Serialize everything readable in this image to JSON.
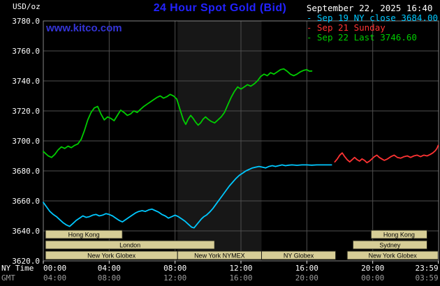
{
  "header": {
    "units": "USD/oz",
    "title": "24 Hour Spot Gold (Bid)",
    "datetime": "September 22, 2025 16:40",
    "watermark": "www.kitco.com"
  },
  "theme": {
    "background": "#000000",
    "title_color": "#2222ff",
    "link_color": "#3434d6",
    "datetime_color": "#ffffff"
  },
  "legend_marker": "-",
  "legend": [
    {
      "label": "Sep 19 NY close 3684.00",
      "color": "#00c8ff"
    },
    {
      "label": "Sep 21 Sunday",
      "color": "#ff3333"
    },
    {
      "label": "Sep 22 Last 3746.60",
      "color": "#00cc00"
    }
  ],
  "footer": {
    "ny_time_label": "NY Time",
    "gmt_label": "GMT"
  },
  "chart_data": {
    "type": "line",
    "title": "24 Hour Spot Gold (Bid)",
    "ylabel": "USD/oz",
    "xlabel": "NY Time / GMT",
    "grid": true,
    "legend_position": "top-right",
    "ylim": [
      3620,
      3780
    ],
    "xlim_hours": [
      0,
      24
    ],
    "y_ticks": [
      3620,
      3640,
      3660,
      3680,
      3700,
      3720,
      3740,
      3760,
      3780
    ],
    "x_tick_hours": [
      0,
      4,
      8,
      12,
      16,
      20,
      23.983
    ],
    "x_ticks_ny": [
      "00:00",
      "04:00",
      "08:00",
      "12:00",
      "16:00",
      "20:00",
      "23:59"
    ],
    "x_ticks_gmt": [
      "04:00",
      "08:00",
      "12:00",
      "16:00",
      "20:00",
      "00:00",
      "03:59"
    ],
    "colors": {
      "grid": "#4f4f4f",
      "border": "#858585",
      "band": "#171717",
      "axis_text": "#ffffff",
      "axis_text_gmt": "#9c9c9c",
      "session_fill": "#d6cd96",
      "session_stroke": "#22221a",
      "tick": "#e6e6e6"
    },
    "nymex_band": {
      "from": 8.15,
      "to": 13.25
    },
    "sessions": [
      {
        "row": 0,
        "from": 0.13,
        "to": 4.8,
        "label": "Hong Kong"
      },
      {
        "row": 0,
        "from": 19.9,
        "to": 23.3,
        "label": "Hong Kong"
      },
      {
        "row": 1,
        "from": 0.13,
        "to": 10.4,
        "label": "London"
      },
      {
        "row": 1,
        "from": 18.8,
        "to": 23.3,
        "label": "Sydney"
      },
      {
        "row": 2,
        "from": 0.13,
        "to": 8.15,
        "label": "New York Globex"
      },
      {
        "row": 2,
        "from": 8.15,
        "to": 13.25,
        "label": "New York NYMEX"
      },
      {
        "row": 2,
        "from": 13.25,
        "to": 17.75,
        "label": "NY Globex"
      },
      {
        "row": 2,
        "from": 18.45,
        "to": 23.97,
        "label": "New York Globex"
      }
    ],
    "series": [
      {
        "id": "sep19",
        "name": "Sep 19 NY close 3684.00",
        "color": "#00c8ff",
        "points": [
          [
            0.0,
            3659
          ],
          [
            0.2,
            3656
          ],
          [
            0.4,
            3653
          ],
          [
            0.6,
            3651
          ],
          [
            0.8,
            3649.5
          ],
          [
            1.0,
            3647.5
          ],
          [
            1.2,
            3645.5
          ],
          [
            1.4,
            3644
          ],
          [
            1.6,
            3643
          ],
          [
            1.8,
            3645
          ],
          [
            2.0,
            3647
          ],
          [
            2.2,
            3648.5
          ],
          [
            2.4,
            3650
          ],
          [
            2.6,
            3649
          ],
          [
            2.8,
            3649.5
          ],
          [
            3.0,
            3650.5
          ],
          [
            3.2,
            3651
          ],
          [
            3.4,
            3650
          ],
          [
            3.6,
            3650.5
          ],
          [
            3.8,
            3651.5
          ],
          [
            4.0,
            3651
          ],
          [
            4.2,
            3650
          ],
          [
            4.4,
            3648.5
          ],
          [
            4.6,
            3647
          ],
          [
            4.8,
            3646
          ],
          [
            5.0,
            3647.5
          ],
          [
            5.2,
            3649
          ],
          [
            5.4,
            3650.5
          ],
          [
            5.6,
            3652
          ],
          [
            5.8,
            3653
          ],
          [
            6.0,
            3653.5
          ],
          [
            6.2,
            3653
          ],
          [
            6.4,
            3654
          ],
          [
            6.6,
            3654.5
          ],
          [
            6.8,
            3653.5
          ],
          [
            7.0,
            3652.5
          ],
          [
            7.2,
            3651
          ],
          [
            7.4,
            3650
          ],
          [
            7.6,
            3648.5
          ],
          [
            7.8,
            3649.5
          ],
          [
            8.0,
            3650.5
          ],
          [
            8.2,
            3649.5
          ],
          [
            8.4,
            3648
          ],
          [
            8.6,
            3646.5
          ],
          [
            8.8,
            3644.5
          ],
          [
            9.0,
            3642.5
          ],
          [
            9.15,
            3642
          ],
          [
            9.3,
            3644
          ],
          [
            9.45,
            3646
          ],
          [
            9.6,
            3648
          ],
          [
            9.75,
            3649.5
          ],
          [
            9.9,
            3650.5
          ],
          [
            10.1,
            3652.5
          ],
          [
            10.3,
            3655
          ],
          [
            10.5,
            3658
          ],
          [
            10.7,
            3661
          ],
          [
            10.9,
            3664
          ],
          [
            11.1,
            3667
          ],
          [
            11.3,
            3670
          ],
          [
            11.5,
            3672.5
          ],
          [
            11.7,
            3675
          ],
          [
            11.9,
            3677
          ],
          [
            12.1,
            3678.5
          ],
          [
            12.3,
            3680
          ],
          [
            12.5,
            3681
          ],
          [
            12.7,
            3682
          ],
          [
            12.9,
            3682.5
          ],
          [
            13.1,
            3683
          ],
          [
            13.3,
            3682.5
          ],
          [
            13.5,
            3682
          ],
          [
            13.7,
            3683
          ],
          [
            13.9,
            3683.5
          ],
          [
            14.1,
            3683
          ],
          [
            14.3,
            3683.5
          ],
          [
            14.5,
            3684
          ],
          [
            14.7,
            3683.5
          ],
          [
            14.9,
            3683.8
          ],
          [
            15.1,
            3684
          ],
          [
            15.4,
            3683.7
          ],
          [
            15.7,
            3684
          ],
          [
            16.0,
            3684
          ],
          [
            16.3,
            3683.8
          ],
          [
            16.6,
            3684
          ],
          [
            16.9,
            3684
          ],
          [
            17.2,
            3684
          ],
          [
            17.5,
            3684
          ]
        ]
      },
      {
        "id": "sep21",
        "name": "Sep 21 Sunday",
        "color": "#ff3333",
        "points": [
          [
            17.7,
            3686
          ],
          [
            17.85,
            3688
          ],
          [
            18.0,
            3690.5
          ],
          [
            18.15,
            3692
          ],
          [
            18.3,
            3689.5
          ],
          [
            18.45,
            3687.5
          ],
          [
            18.6,
            3686
          ],
          [
            18.75,
            3687.5
          ],
          [
            18.9,
            3689
          ],
          [
            19.05,
            3687.5
          ],
          [
            19.2,
            3686.5
          ],
          [
            19.35,
            3688
          ],
          [
            19.5,
            3687
          ],
          [
            19.65,
            3685.5
          ],
          [
            19.8,
            3686.5
          ],
          [
            19.95,
            3688
          ],
          [
            20.1,
            3689.5
          ],
          [
            20.25,
            3690.5
          ],
          [
            20.4,
            3689
          ],
          [
            20.55,
            3688
          ],
          [
            20.7,
            3687
          ],
          [
            20.9,
            3688
          ],
          [
            21.1,
            3689.5
          ],
          [
            21.3,
            3690.5
          ],
          [
            21.5,
            3689
          ],
          [
            21.7,
            3688.5
          ],
          [
            21.9,
            3689.5
          ],
          [
            22.1,
            3690
          ],
          [
            22.3,
            3689
          ],
          [
            22.5,
            3690
          ],
          [
            22.7,
            3690.5
          ],
          [
            22.9,
            3689.5
          ],
          [
            23.1,
            3690.5
          ],
          [
            23.3,
            3690
          ],
          [
            23.5,
            3691
          ],
          [
            23.65,
            3692
          ],
          [
            23.8,
            3693.5
          ],
          [
            23.9,
            3695
          ],
          [
            23.98,
            3697
          ]
        ]
      },
      {
        "id": "sep22",
        "name": "Sep 22 Last 3746.60",
        "color": "#00cc00",
        "points": [
          [
            0.0,
            3693
          ],
          [
            0.15,
            3691.5
          ],
          [
            0.3,
            3690
          ],
          [
            0.5,
            3689
          ],
          [
            0.7,
            3691
          ],
          [
            0.9,
            3694
          ],
          [
            1.1,
            3696
          ],
          [
            1.3,
            3695
          ],
          [
            1.5,
            3696.5
          ],
          [
            1.7,
            3695.5
          ],
          [
            1.9,
            3697
          ],
          [
            2.1,
            3698
          ],
          [
            2.3,
            3701
          ],
          [
            2.5,
            3707
          ],
          [
            2.7,
            3714
          ],
          [
            2.9,
            3719
          ],
          [
            3.1,
            3722
          ],
          [
            3.3,
            3723
          ],
          [
            3.5,
            3718
          ],
          [
            3.7,
            3714
          ],
          [
            3.9,
            3716
          ],
          [
            4.1,
            3715
          ],
          [
            4.3,
            3713.5
          ],
          [
            4.5,
            3717
          ],
          [
            4.7,
            3720.5
          ],
          [
            4.9,
            3719
          ],
          [
            5.1,
            3717
          ],
          [
            5.3,
            3718
          ],
          [
            5.5,
            3720
          ],
          [
            5.7,
            3719
          ],
          [
            5.9,
            3721
          ],
          [
            6.1,
            3723
          ],
          [
            6.3,
            3724.5
          ],
          [
            6.5,
            3726
          ],
          [
            6.7,
            3727.5
          ],
          [
            6.9,
            3729
          ],
          [
            7.1,
            3730
          ],
          [
            7.3,
            3728.5
          ],
          [
            7.5,
            3729.5
          ],
          [
            7.7,
            3731
          ],
          [
            7.9,
            3730
          ],
          [
            8.1,
            3728
          ],
          [
            8.3,
            3721
          ],
          [
            8.5,
            3714
          ],
          [
            8.65,
            3711
          ],
          [
            8.8,
            3714.5
          ],
          [
            8.95,
            3717
          ],
          [
            9.1,
            3715
          ],
          [
            9.25,
            3712.5
          ],
          [
            9.4,
            3710.5
          ],
          [
            9.55,
            3712
          ],
          [
            9.7,
            3714.5
          ],
          [
            9.85,
            3716
          ],
          [
            10.0,
            3714.5
          ],
          [
            10.2,
            3713
          ],
          [
            10.4,
            3712
          ],
          [
            10.6,
            3714
          ],
          [
            10.8,
            3716
          ],
          [
            11.0,
            3719
          ],
          [
            11.2,
            3724
          ],
          [
            11.4,
            3729
          ],
          [
            11.6,
            3733
          ],
          [
            11.8,
            3736
          ],
          [
            12.0,
            3734.5
          ],
          [
            12.2,
            3736
          ],
          [
            12.4,
            3737.5
          ],
          [
            12.6,
            3736.5
          ],
          [
            12.8,
            3738
          ],
          [
            13.0,
            3740
          ],
          [
            13.2,
            3743
          ],
          [
            13.4,
            3744.5
          ],
          [
            13.6,
            3743.5
          ],
          [
            13.8,
            3745.5
          ],
          [
            14.0,
            3744.5
          ],
          [
            14.2,
            3746
          ],
          [
            14.4,
            3747.5
          ],
          [
            14.6,
            3748
          ],
          [
            14.8,
            3746.5
          ],
          [
            15.0,
            3744.5
          ],
          [
            15.2,
            3743.5
          ],
          [
            15.4,
            3744.5
          ],
          [
            15.6,
            3746
          ],
          [
            15.8,
            3747
          ],
          [
            16.0,
            3747.5
          ],
          [
            16.15,
            3746.5
          ],
          [
            16.3,
            3746.6
          ]
        ]
      }
    ]
  }
}
